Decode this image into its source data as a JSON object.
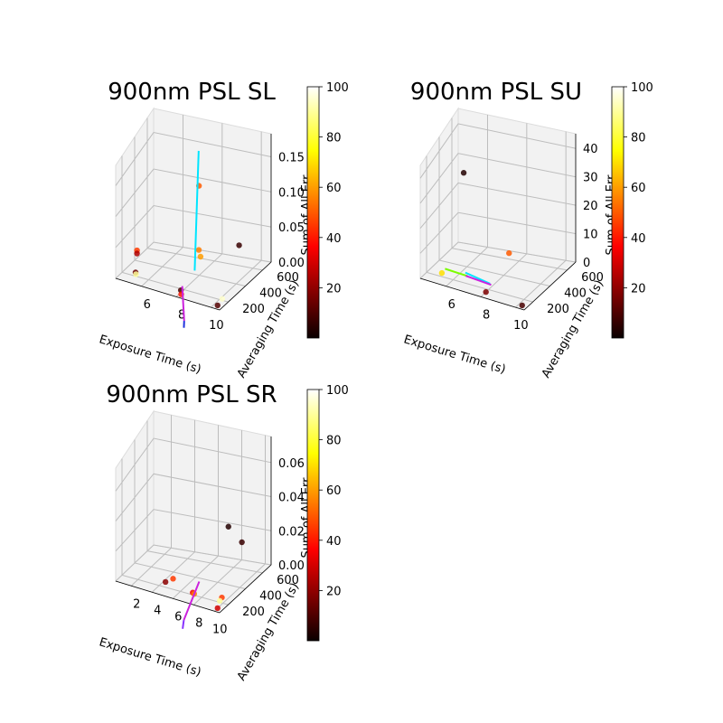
{
  "figure": {
    "colorbar": {
      "colormap": "hot",
      "min": 0,
      "max": 100,
      "ticks": [
        "20",
        "40",
        "60",
        "80",
        "100"
      ]
    }
  },
  "chart_data": [
    {
      "type": "scatter",
      "projection": "3d",
      "title": "900nm PSL SL",
      "xlabel": "Exposure Time (s)",
      "ylabel": "Averaging Time (s)",
      "zlabel": "Sum of All Err",
      "x_ticks": [
        "6",
        "8",
        "10"
      ],
      "y_ticks": [
        "200",
        "400",
        "600"
      ],
      "z_ticks": [
        "0.00",
        "0.05",
        "0.10",
        "0.15"
      ],
      "xlim": [
        4.5,
        10.5
      ],
      "ylim": [
        100,
        700
      ],
      "zlim": [
        0,
        0.17
      ],
      "points": [
        {
          "x": 7.3,
          "y": 650,
          "z": 0.12,
          "color": 50
        },
        {
          "x": 7.4,
          "y": 620,
          "z": 0.02,
          "color": 55
        },
        {
          "x": 7.5,
          "y": 620,
          "z": 0.01,
          "color": 60
        },
        {
          "x": 9.8,
          "y": 600,
          "z": 0.05,
          "color": 8
        },
        {
          "x": 5.0,
          "y": 300,
          "z": 0.03,
          "color": 45
        },
        {
          "x": 5.0,
          "y": 300,
          "z": 0.025,
          "color": 25
        },
        {
          "x": 5.1,
          "y": 250,
          "z": 0.0,
          "color": 15
        },
        {
          "x": 5.2,
          "y": 230,
          "z": 0.0,
          "color": 90
        },
        {
          "x": 7.9,
          "y": 200,
          "z": 0.0,
          "color": 10
        },
        {
          "x": 8.1,
          "y": 150,
          "z": 0.0,
          "color": 40
        },
        {
          "x": 10.1,
          "y": 250,
          "z": 0.0,
          "color": 95
        },
        {
          "x": 10.2,
          "y": 150,
          "z": 0.0,
          "color": 12
        }
      ],
      "lines": [
        {
          "color": "#00e5ff",
          "from": {
            "x": 7.1,
            "y": 700,
            "z": 0.17
          },
          "to": {
            "x": 7.6,
            "y": 500,
            "z": 0.0
          }
        },
        {
          "color": "#cc22dd",
          "from": {
            "x": 8.05,
            "y": 180,
            "z": 0.01
          },
          "to": {
            "x": 8.6,
            "y": 60,
            "z": -0.03
          }
        },
        {
          "color": "#2233dd",
          "from": {
            "x": 8.6,
            "y": 60,
            "z": -0.03
          },
          "to": {
            "x": 8.62,
            "y": 50,
            "z": -0.04
          }
        }
      ]
    },
    {
      "type": "scatter",
      "projection": "3d",
      "title": "900nm PSL SU",
      "xlabel": "Exposure Time (s)",
      "ylabel": "Averaging Time (s)",
      "zlabel": "Sum of All Err",
      "x_ticks": [
        "6",
        "8",
        "10"
      ],
      "y_ticks": [
        "200",
        "400",
        "600"
      ],
      "z_ticks": [
        "0",
        "10",
        "20",
        "30",
        "40"
      ],
      "xlim": [
        4.5,
        10.5
      ],
      "ylim": [
        100,
        700
      ],
      "zlim": [
        0,
        42
      ],
      "points": [
        {
          "x": 5.0,
          "y": 650,
          "z": 30,
          "color": 5
        },
        {
          "x": 7.8,
          "y": 600,
          "z": 5,
          "color": 50
        },
        {
          "x": 5.2,
          "y": 250,
          "z": 0,
          "color": 70
        },
        {
          "x": 8.0,
          "y": 180,
          "z": 0,
          "color": 18
        },
        {
          "x": 10.2,
          "y": 150,
          "z": 0,
          "color": 10
        }
      ],
      "lines": [
        {
          "color": "#7cfc00",
          "from": {
            "x": 5.2,
            "y": 300,
            "z": 0.5
          },
          "to": {
            "x": 6.5,
            "y": 300,
            "z": 0.3
          }
        },
        {
          "color": "#00e5ff",
          "from": {
            "x": 6.3,
            "y": 320,
            "z": 0.8
          },
          "to": {
            "x": 7.8,
            "y": 300,
            "z": 0.0
          }
        },
        {
          "color": "#cc22dd",
          "from": {
            "x": 6.4,
            "y": 300,
            "z": 0.2
          },
          "to": {
            "x": 7.9,
            "y": 290,
            "z": 0.0
          }
        }
      ]
    },
    {
      "type": "scatter",
      "projection": "3d",
      "title": "900nm PSL SR",
      "xlabel": "Exposure Time (s)",
      "ylabel": "Averaging Time (s)",
      "zlabel": "Sum of All Err",
      "x_ticks": [
        "2",
        "4",
        "6",
        "8",
        "10"
      ],
      "y_ticks": [
        "200",
        "400",
        "600"
      ],
      "z_ticks": [
        "0.00",
        "0.02",
        "0.04",
        "0.06"
      ],
      "xlim": [
        0.5,
        10.5
      ],
      "ylim": [
        100,
        700
      ],
      "zlim": [
        0,
        0.07
      ],
      "points": [
        {
          "x": 8.0,
          "y": 650,
          "z": 0.03,
          "color": 5
        },
        {
          "x": 9.6,
          "y": 600,
          "z": 0.025,
          "color": 8
        },
        {
          "x": 4.5,
          "y": 350,
          "z": 0.0,
          "color": 45
        },
        {
          "x": 4.2,
          "y": 280,
          "z": 0.0,
          "color": 20
        },
        {
          "x": 7.0,
          "y": 250,
          "z": 0.0,
          "color": 35
        },
        {
          "x": 7.2,
          "y": 240,
          "z": 0.0,
          "color": 55
        },
        {
          "x": 9.5,
          "y": 300,
          "z": 0.0,
          "color": 45
        },
        {
          "x": 9.6,
          "y": 250,
          "z": 0.0,
          "color": 90
        },
        {
          "x": 10.0,
          "y": 150,
          "z": 0.0,
          "color": 30
        }
      ],
      "lines": [
        {
          "color": "#cc22dd",
          "from": {
            "x": 7.2,
            "y": 320,
            "z": 0.005
          },
          "to": {
            "x": 7.3,
            "y": 60,
            "z": -0.01
          }
        },
        {
          "color": "#8833ff",
          "from": {
            "x": 7.3,
            "y": 60,
            "z": -0.01
          },
          "to": {
            "x": 7.31,
            "y": 40,
            "z": -0.015
          }
        }
      ]
    }
  ]
}
